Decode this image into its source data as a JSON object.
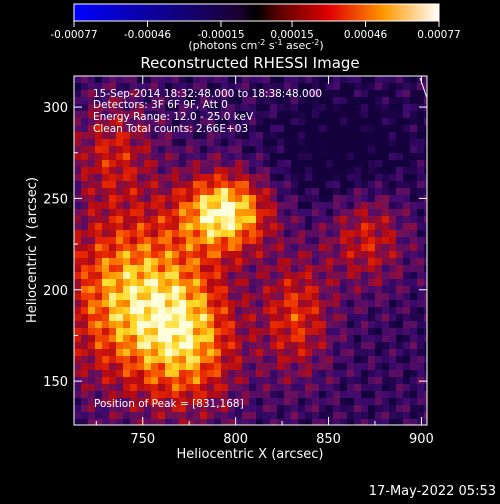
{
  "chart_data": {
    "type": "heatmap",
    "title": "Reconstructed RHESSI Image",
    "xlabel": "Heliocentric X (arcsec)",
    "ylabel": "Heliocentric Y (arcsec)",
    "xlim": [
      713,
      903
    ],
    "ylim": [
      126,
      317
    ],
    "xticks": [
      750,
      800,
      850,
      900
    ],
    "yticks": [
      150,
      200,
      250,
      300
    ],
    "colorbar": {
      "range": [
        -0.00077,
        0.00077
      ],
      "ticks": [
        "-0.00077",
        "-0.00046",
        "-0.00015",
        "0.00015",
        "0.00046",
        "0.00077"
      ],
      "tick_values": [
        -0.00077,
        -0.00046,
        -0.00015,
        0.00015,
        0.00046,
        0.00077
      ],
      "units_prefix": "(photons cm",
      "units_sup1": "-2",
      "units_mid1": " s",
      "units_sup2": "-1",
      "units_mid2": " asec",
      "units_sup3": "-2",
      "units_suffix": ")"
    },
    "annotations": [
      "15-Sep-2014 18:32:48.000 to 18:38:48.000",
      "Detectors: 3F 6F 9F, Att 0",
      "Energy Range: 12.0 - 25.0 keV",
      "Clean      Total counts: 2.66E+03"
    ],
    "peak_label": "Position of Peak = [831,168]",
    "peak": [
      831,
      168
    ],
    "timestamp": "17-May-2022 05:53",
    "grid": false,
    "colors": {
      "background": "#000000",
      "colormap": [
        "#0000ff",
        "#000000",
        "#ff0000",
        "#ffff00",
        "#ffffff"
      ]
    }
  }
}
